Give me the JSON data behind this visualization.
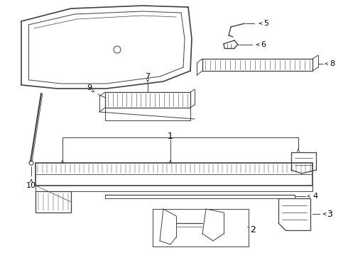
{
  "bg_color": "#ffffff",
  "line_color": "#404040",
  "fig_width": 4.9,
  "fig_height": 3.6,
  "dpi": 100
}
